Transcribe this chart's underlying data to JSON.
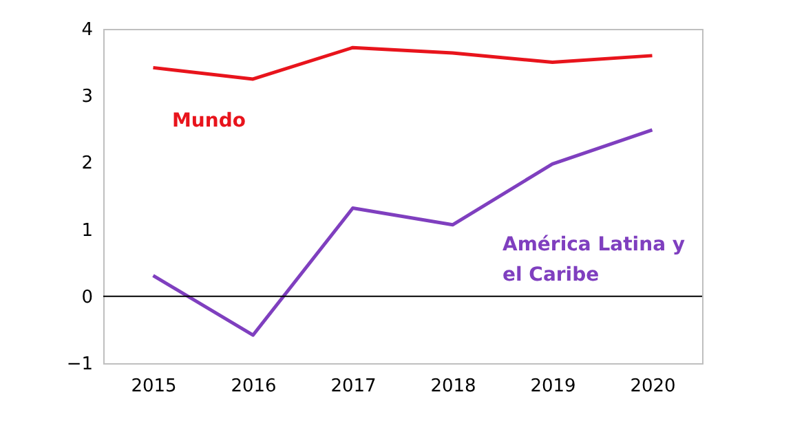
{
  "chart_data": {
    "type": "line",
    "categories": [
      "2015",
      "2016",
      "2017",
      "2018",
      "2019",
      "2020"
    ],
    "series": [
      {
        "name": "Mundo",
        "color": "#e8141c",
        "values": [
          3.42,
          3.25,
          3.72,
          3.64,
          3.5,
          3.6
        ]
      },
      {
        "name": "América Latina y el Caribe",
        "color": "#7f3fbf",
        "values": [
          0.31,
          -0.58,
          1.32,
          1.07,
          1.98,
          2.49
        ]
      }
    ],
    "ylim": [
      -1,
      4
    ],
    "yticks": [
      -1,
      0,
      1,
      2,
      3,
      4
    ],
    "grid": false,
    "marker": "none",
    "line_style": "solid",
    "ref_lines": [
      {
        "axis": "y",
        "value": 0,
        "color": "#000000"
      }
    ]
  }
}
